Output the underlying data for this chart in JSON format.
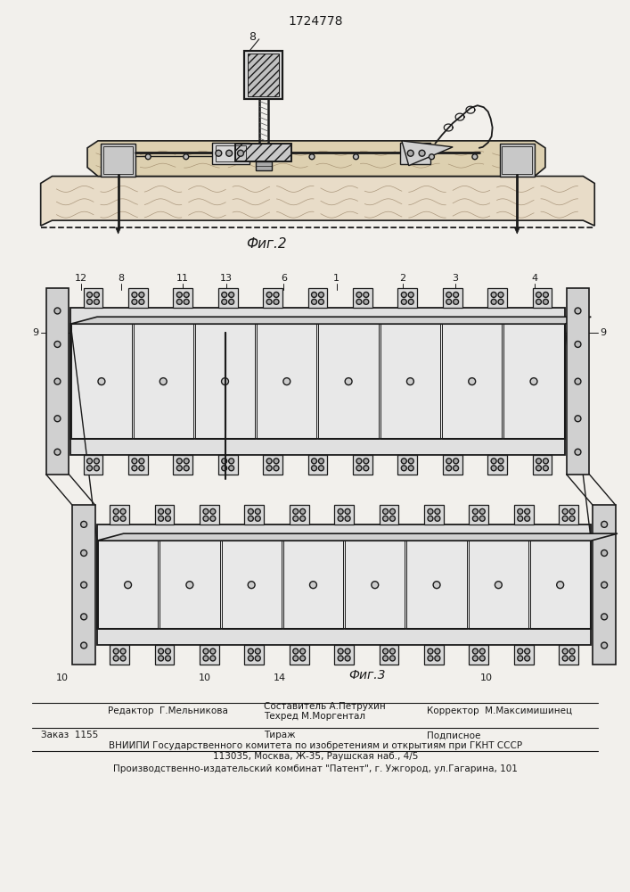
{
  "patent_number": "1724778",
  "fig2_label": "Фиг.2",
  "fig3_label": "Фиг.3",
  "footer_col1_row1": "Редактор  Г.Мельникова",
  "footer_col2_row1a": "Составитель А.Петрухин",
  "footer_col2_row1b": "Техред М.Моргентал",
  "footer_col3_row1": "Корректор  М.Максимишинец",
  "footer_col1_row2": "Заказ  1155",
  "footer_col2_row2": "Тираж",
  "footer_col3_row2": "Подписное",
  "footer_vniip": "ВНИИПИ Государственного комитета по изобретениям и открытиям при ГКНТ СССР",
  "footer_addr": "113035, Москва, Ж-35, Раушская наб., 4/5",
  "footer_patent": "Производственно-издательский комбинат \"Патент\", г. Ужгород, ул.Гагарина, 101",
  "bg_color": "#f2f0ec",
  "lc": "#1a1a1a"
}
